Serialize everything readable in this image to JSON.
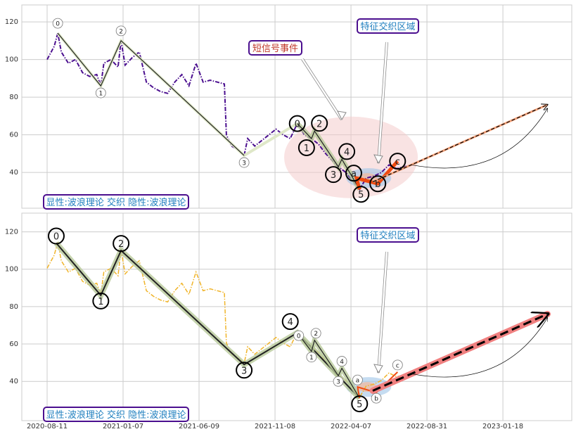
{
  "chart_data": [
    {
      "type": "line",
      "panel": "top",
      "x_ticks": [
        "2020-08-11",
        "2021-01-07",
        "2021-06-09",
        "2021-11-08",
        "2022-04-07",
        "2022-08-31",
        "2023-01-18"
      ],
      "y_ticks": [
        40,
        60,
        80,
        100,
        120
      ],
      "ylim": [
        21,
        129
      ],
      "xlim_days": [
        -50,
        1036
      ],
      "grid": true,
      "price_color": "#4b0f8f",
      "price": {
        "days": [
          0,
          14,
          21,
          28,
          42,
          56,
          70,
          84,
          98,
          106,
          112,
          126,
          140,
          146,
          154,
          168,
          182,
          196,
          210,
          224,
          238,
          252,
          266,
          280,
          294,
          308,
          322,
          336,
          350,
          354,
          364,
          378,
          389,
          396,
          410,
          424,
          438,
          452,
          466,
          480,
          494,
          508,
          522,
          536,
          550,
          564,
          575,
          590,
          605,
          617,
          630,
          645,
          660,
          675,
          690,
          705,
          720,
          729
        ],
        "values": [
          100,
          107,
          114,
          104,
          98,
          100,
          93,
          91,
          92,
          86,
          98,
          100,
          96,
          110,
          97,
          101,
          104,
          88,
          85,
          83,
          82,
          88,
          92,
          86,
          98,
          88,
          89,
          88,
          87,
          60,
          54,
          52,
          49,
          58,
          54,
          57,
          60,
          63,
          60,
          58,
          66,
          60,
          58,
          55,
          50,
          46,
          43,
          40,
          35,
          31,
          37,
          38,
          40,
          44,
          42,
          43,
          44,
          45
        ]
      },
      "major_waves": {
        "labels": [
          "0",
          "1",
          "2",
          "3"
        ],
        "days": [
          21,
          106,
          146,
          389
        ],
        "values": [
          114,
          86,
          110,
          49
        ]
      },
      "minor_waves": {
        "labels": [
          "0",
          "1",
          "2",
          "3",
          "4",
          "5",
          "a",
          "b",
          "c"
        ],
        "days": [
          494,
          522,
          528,
          575,
          582,
          617,
          611,
          653,
          692
        ],
        "values": [
          66,
          58,
          62,
          43,
          47,
          31,
          37,
          34,
          46
        ]
      },
      "projection": {
        "days": [
          643,
          988
        ],
        "values": [
          35,
          76
        ]
      },
      "annotations": [
        "短信号事件",
        "特征交织区域"
      ],
      "legend": "显性:波浪理论 交织 隐性:波浪理论"
    },
    {
      "type": "line",
      "panel": "bottom",
      "x_ticks": [
        "2020-08-11",
        "2021-01-07",
        "2021-06-09",
        "2021-11-08",
        "2022-04-07",
        "2022-08-31",
        "2023-01-18"
      ],
      "y_ticks": [
        40,
        60,
        80,
        100,
        120
      ],
      "ylim": [
        19,
        130
      ],
      "xlim_days": [
        -50,
        1036
      ],
      "grid": true,
      "price_color": "#f0b429",
      "major_waves": {
        "labels": [
          "0",
          "1",
          "2",
          "3",
          "4",
          "5"
        ],
        "days": [
          18,
          106,
          146,
          389,
          494,
          617
        ],
        "values": [
          114,
          86,
          110,
          49,
          66,
          31
        ]
      },
      "minor_waves": {
        "labels": [
          "0",
          "1",
          "2",
          "3",
          "4",
          "a",
          "b",
          "c"
        ],
        "days": [
          494,
          522,
          528,
          575,
          582,
          613,
          650,
          692
        ],
        "values": [
          66,
          56,
          62,
          43,
          47,
          37,
          34,
          45
        ]
      },
      "projection": {
        "days": [
          643,
          988
        ],
        "values": [
          35,
          76
        ]
      },
      "annotations": [
        "特征交织区域"
      ],
      "legend": "显性:波浪理论 交织 隐性:波浪理论"
    }
  ],
  "colors": {
    "annotation_border": "#4b0f8f",
    "short_signal_text": "#c0392b",
    "region_text": "#1f7fbf",
    "legend_text": "#1f7fbf",
    "projection_red": "#f08080",
    "wave_green": "#b8c99a"
  }
}
